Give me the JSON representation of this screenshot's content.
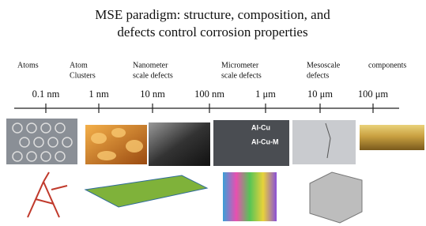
{
  "title": [
    "MSE paradigm: structure, composition, and",
    "defects control corrosion properties"
  ],
  "categories": [
    [
      "Atoms"
    ],
    [
      "Atom",
      "Clusters"
    ],
    [
      "Nanometer",
      "scale defects"
    ],
    [
      "Micrometer",
      "scale defects"
    ],
    [
      "Mesoscale",
      "defects"
    ],
    [
      "components"
    ]
  ],
  "scale": [
    "0.1 nm",
    "1 nm",
    "10 nm",
    "100 nm",
    "1 μm",
    "10 μm",
    "100 μm"
  ],
  "annotations": [
    "Al-Cu",
    "Al-Cu-M"
  ]
}
